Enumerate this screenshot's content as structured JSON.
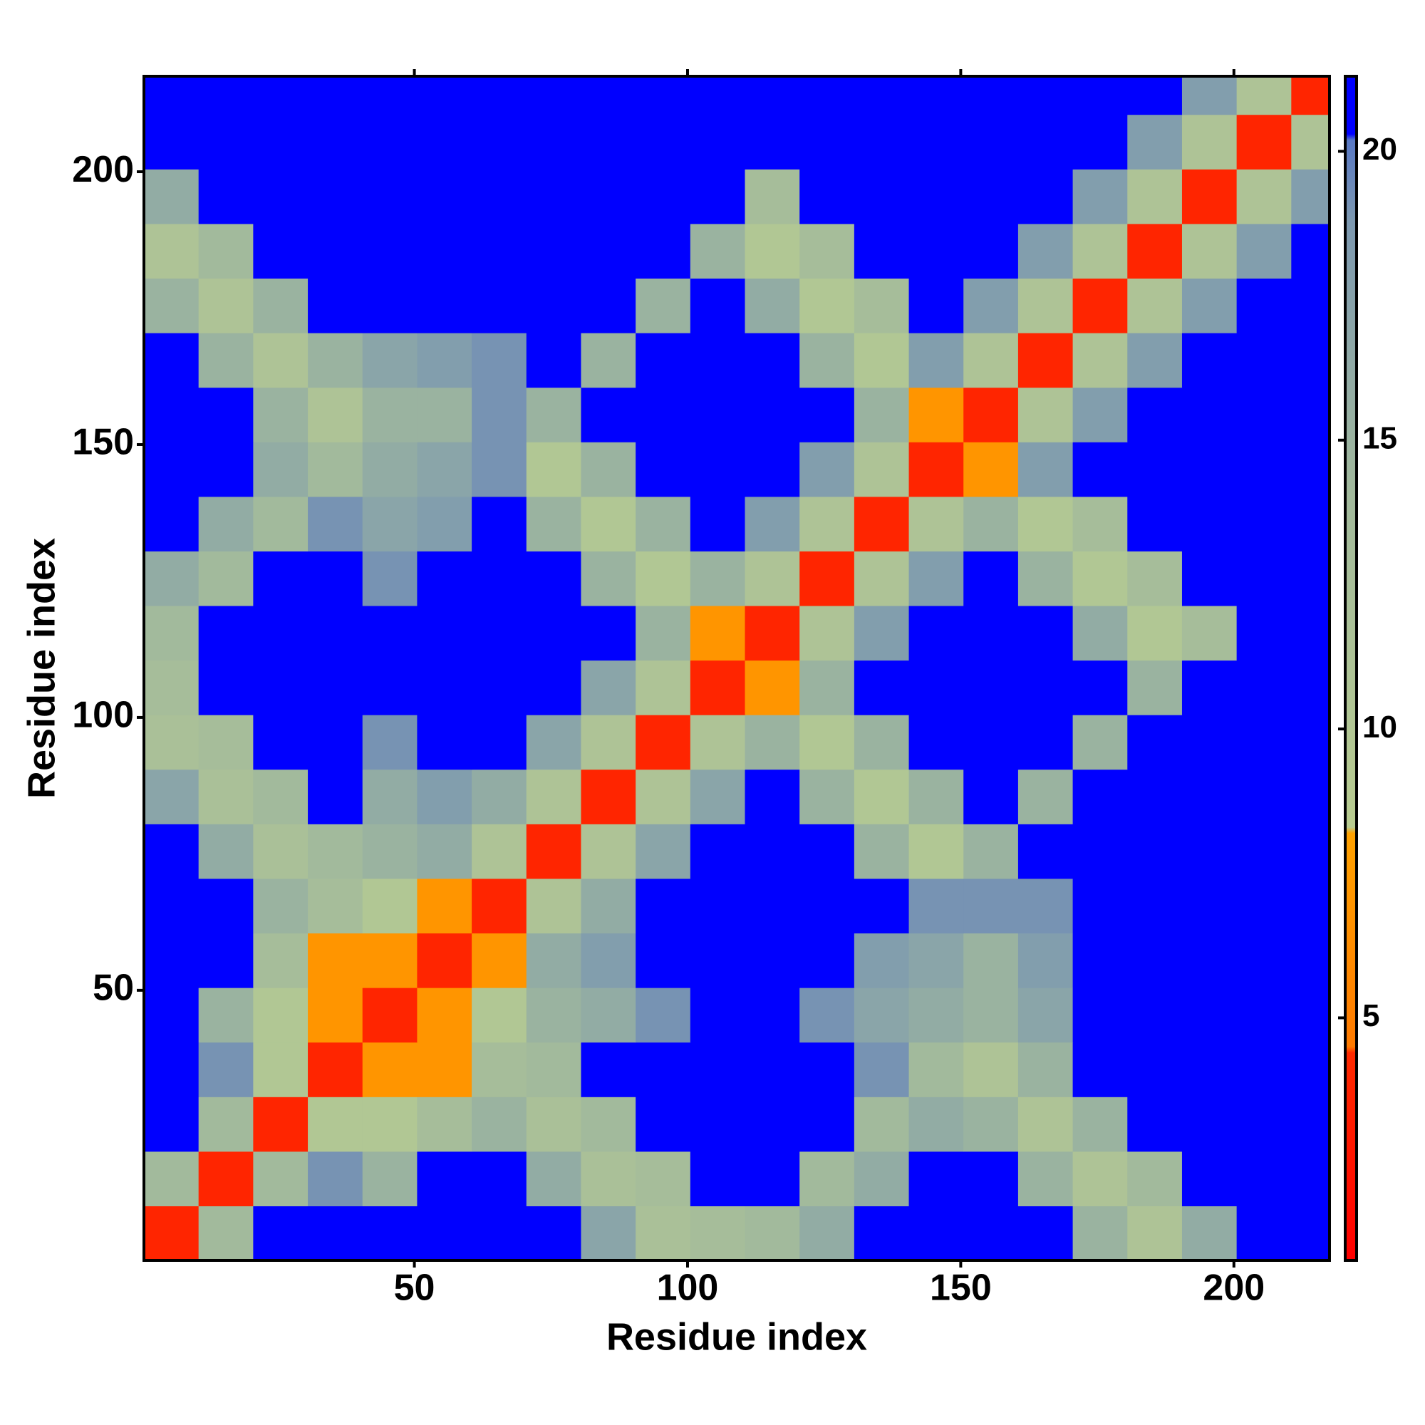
{
  "chart_data": {
    "type": "heatmap",
    "xlabel": "Residue index",
    "ylabel": "Residue index",
    "xlim": [
      0.5,
      217.5
    ],
    "ylim": [
      0.5,
      217.5
    ],
    "xticks": [
      50,
      100,
      150,
      200
    ],
    "yticks": [
      50,
      100,
      150,
      200
    ],
    "xbins": [
      0.5,
      10.5,
      20.5,
      30.5,
      40.5,
      50.5,
      60.5,
      70.5,
      80.5,
      90.5,
      100.5,
      110.5,
      120.5,
      130.5,
      140.5,
      150.5,
      160.5,
      170.5,
      180.5,
      190.5,
      200.5,
      210.5,
      217.5
    ],
    "ybins": [
      0.5,
      10.5,
      20.5,
      30.5,
      40.5,
      50.5,
      60.5,
      70.5,
      80.5,
      90.5,
      100.5,
      110.5,
      120.5,
      130.5,
      140.5,
      150.5,
      160.5,
      170.5,
      180.5,
      190.5,
      200.5,
      210.5,
      217.5
    ],
    "values": [
      [
        4,
        14,
        21,
        21,
        21,
        21,
        21,
        21,
        17,
        12,
        13,
        14,
        16,
        21,
        21,
        21,
        21,
        15,
        11,
        16,
        21,
        21
      ],
      [
        14,
        4,
        14,
        19,
        15,
        21,
        21,
        16,
        12,
        13,
        21,
        21,
        14,
        16,
        21,
        21,
        15,
        11,
        14,
        21,
        21,
        21
      ],
      [
        21,
        14,
        4,
        10,
        10,
        13,
        15,
        12,
        14,
        21,
        21,
        21,
        21,
        14,
        16,
        15,
        11,
        15,
        21,
        21,
        21,
        21
      ],
      [
        21,
        19,
        10,
        4,
        7,
        7,
        13,
        14,
        21,
        21,
        21,
        21,
        21,
        19,
        14,
        11,
        15,
        21,
        21,
        21,
        21,
        21
      ],
      [
        21,
        15,
        10,
        7,
        4,
        7,
        10,
        15,
        16,
        19,
        21,
        21,
        19,
        17,
        16,
        15,
        17,
        21,
        21,
        21,
        21,
        21
      ],
      [
        21,
        21,
        13,
        7,
        7,
        4,
        7,
        16,
        18,
        21,
        21,
        21,
        21,
        18,
        17,
        15,
        18,
        21,
        21,
        21,
        21,
        21
      ],
      [
        21,
        21,
        15,
        13,
        10,
        7,
        4,
        11,
        16,
        21,
        21,
        21,
        21,
        21,
        19,
        19,
        19,
        21,
        21,
        21,
        21,
        21
      ],
      [
        21,
        16,
        12,
        14,
        15,
        16,
        11,
        4,
        11,
        17,
        21,
        21,
        21,
        15,
        10,
        15,
        21,
        21,
        21,
        21,
        21,
        21
      ],
      [
        17,
        12,
        14,
        21,
        16,
        18,
        16,
        11,
        4,
        11,
        17,
        21,
        15,
        10,
        15,
        21,
        15,
        21,
        21,
        21,
        21,
        21
      ],
      [
        12,
        13,
        21,
        21,
        19,
        21,
        21,
        17,
        11,
        4,
        11,
        15,
        10,
        15,
        21,
        21,
        21,
        15,
        21,
        21,
        21,
        21
      ],
      [
        13,
        21,
        21,
        21,
        21,
        21,
        21,
        21,
        17,
        11,
        4,
        7,
        15,
        21,
        21,
        21,
        21,
        21,
        15,
        21,
        21,
        21
      ],
      [
        14,
        21,
        21,
        21,
        21,
        21,
        21,
        21,
        21,
        15,
        7,
        4,
        11,
        18,
        21,
        21,
        21,
        16,
        10,
        13,
        21,
        21
      ],
      [
        16,
        14,
        21,
        21,
        19,
        21,
        21,
        21,
        15,
        10,
        15,
        11,
        4,
        11,
        18,
        21,
        15,
        10,
        13,
        21,
        21,
        21
      ],
      [
        21,
        16,
        14,
        19,
        17,
        18,
        21,
        15,
        10,
        15,
        21,
        18,
        11,
        4,
        11,
        15,
        10,
        13,
        21,
        21,
        21,
        21
      ],
      [
        21,
        21,
        16,
        14,
        16,
        17,
        19,
        10,
        15,
        21,
        21,
        21,
        18,
        11,
        4,
        7,
        18,
        21,
        21,
        21,
        21,
        21
      ],
      [
        21,
        21,
        15,
        11,
        15,
        15,
        19,
        15,
        21,
        21,
        21,
        21,
        21,
        15,
        7,
        4,
        11,
        18,
        21,
        21,
        21,
        21
      ],
      [
        21,
        15,
        11,
        15,
        17,
        18,
        19,
        21,
        15,
        21,
        21,
        21,
        15,
        10,
        18,
        11,
        4,
        11,
        18,
        21,
        21,
        21
      ],
      [
        15,
        11,
        15,
        21,
        21,
        21,
        21,
        21,
        21,
        15,
        21,
        16,
        10,
        13,
        21,
        18,
        11,
        4,
        11,
        18,
        21,
        21
      ],
      [
        11,
        14,
        21,
        21,
        21,
        21,
        21,
        21,
        21,
        21,
        15,
        10,
        13,
        21,
        21,
        21,
        18,
        11,
        4,
        11,
        18,
        21
      ],
      [
        16,
        21,
        21,
        21,
        21,
        21,
        21,
        21,
        21,
        21,
        21,
        13,
        21,
        21,
        21,
        21,
        21,
        18,
        11,
        4,
        11,
        18
      ],
      [
        21,
        21,
        21,
        21,
        21,
        21,
        21,
        21,
        21,
        21,
        21,
        21,
        21,
        21,
        21,
        21,
        21,
        21,
        18,
        11,
        4,
        11
      ],
      [
        21,
        21,
        21,
        21,
        21,
        21,
        21,
        21,
        21,
        21,
        21,
        21,
        21,
        21,
        21,
        21,
        21,
        21,
        21,
        18,
        11,
        4
      ]
    ],
    "colorbar": {
      "zlim": [
        0.8,
        21.3
      ],
      "ticks": [
        5,
        10,
        15,
        20
      ],
      "colorscale": [
        [
          0.8,
          "#ff0000"
        ],
        [
          4.4,
          "#ff2a00"
        ],
        [
          4.5,
          "#ff7a00"
        ],
        [
          8.2,
          "#ffa200"
        ],
        [
          8.3,
          "#b8cc90"
        ],
        [
          14,
          "#a2ba9c"
        ],
        [
          18.8,
          "#7c98b0"
        ],
        [
          20.2,
          "#5878c4"
        ],
        [
          20.3,
          "#0000ff"
        ],
        [
          21.3,
          "#0000ff"
        ]
      ]
    }
  }
}
